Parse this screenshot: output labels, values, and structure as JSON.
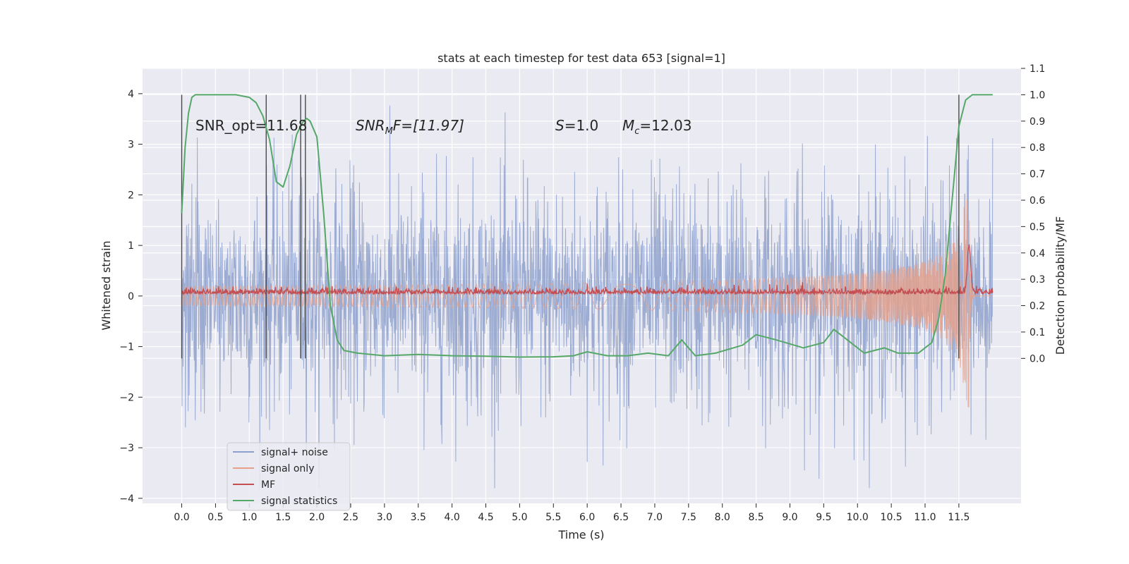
{
  "chart_data": {
    "type": "line",
    "title": "stats at each timestep for test data 653 [signal=1]",
    "xlabel": "Time (s)",
    "ylabel": "Whitened strain",
    "ylabel_right": "Detection probability/MF",
    "xlim": [
      -0.58,
      12.42
    ],
    "ylim": [
      -4.1,
      4.5
    ],
    "ylim_right": [
      -0.55,
      1.1
    ],
    "x_ticks": [
      "0.0",
      "0.5",
      "1.0",
      "1.5",
      "2.0",
      "2.5",
      "3.0",
      "3.5",
      "4.0",
      "4.5",
      "5.0",
      "5.5",
      "6.0",
      "6.5",
      "7.0",
      "7.5",
      "8.0",
      "8.5",
      "9.0",
      "9.5",
      "10.0",
      "10.5",
      "11.0",
      "11.5"
    ],
    "y_ticks": [
      "4",
      "3",
      "2",
      "1",
      "0",
      "−1",
      "−2",
      "−3",
      "−4"
    ],
    "y_ticks_right": [
      "1.1",
      "1.0",
      "0.9",
      "0.8",
      "0.7",
      "0.6",
      "0.5",
      "0.4",
      "0.3",
      "0.2",
      "0.1",
      "0.0"
    ],
    "grid": true,
    "legend": {
      "placement": "lower-left",
      "entries": [
        {
          "label": "signal+ noise",
          "color": "#8da0cb"
        },
        {
          "label": "signal only",
          "color": "#e6a08a"
        },
        {
          "label": "MF",
          "color": "#c44e52"
        },
        {
          "label": "signal statistics",
          "color": "#55a868"
        }
      ]
    },
    "annotations": {
      "snr_opt": "SNR_opt=11.68",
      "snr_mf_main": "SNR",
      "snr_mf_sub": "M",
      "snr_mf_rest": "F=[11.97]",
      "s_main": "S",
      "s_rest": "=1.0",
      "mc_main": "M",
      "mc_sub": "c",
      "mc_rest": "=12.03"
    },
    "series": [
      {
        "name": "signal+ noise",
        "axis": "left",
        "style": "dense-noise",
        "x_range": [
          0.0,
          12.0
        ],
        "approx_envelope": [
          -3.8,
          4.1
        ]
      },
      {
        "name": "signal only",
        "axis": "left",
        "style": "chirp",
        "x_range": [
          0.0,
          12.0
        ],
        "peak_time": 11.65,
        "peak_amplitude": 2.2
      },
      {
        "name": "MF",
        "axis": "left",
        "x_range": [
          0.0,
          12.0
        ],
        "baseline": 0.07,
        "peak_time": 11.65,
        "peak_value": 1.0
      },
      {
        "name": "signal statistics",
        "axis": "right",
        "x": [
          0.0,
          0.05,
          0.1,
          0.15,
          0.2,
          0.3,
          0.5,
          0.8,
          1.0,
          1.1,
          1.2,
          1.3,
          1.4,
          1.5,
          1.6,
          1.7,
          1.8,
          1.85,
          1.9,
          2.0,
          2.1,
          2.2,
          2.3,
          2.4,
          2.6,
          3.0,
          3.5,
          4.0,
          4.5,
          5.0,
          5.5,
          5.8,
          6.0,
          6.3,
          6.6,
          6.9,
          7.2,
          7.4,
          7.6,
          7.9,
          8.3,
          8.5,
          8.8,
          9.2,
          9.5,
          9.65,
          9.8,
          10.1,
          10.4,
          10.6,
          10.9,
          11.1,
          11.2,
          11.3,
          11.4,
          11.5,
          11.6,
          11.7,
          11.8,
          12.0
        ],
        "y": [
          0.55,
          0.8,
          0.93,
          0.99,
          1.0,
          1.0,
          1.0,
          1.0,
          0.99,
          0.97,
          0.92,
          0.83,
          0.67,
          0.65,
          0.73,
          0.85,
          0.9,
          0.91,
          0.9,
          0.84,
          0.55,
          0.2,
          0.07,
          0.03,
          0.02,
          0.01,
          0.015,
          0.01,
          0.008,
          0.005,
          0.006,
          0.01,
          0.025,
          0.01,
          0.01,
          0.02,
          0.01,
          0.07,
          0.01,
          0.02,
          0.05,
          0.09,
          0.07,
          0.04,
          0.06,
          0.11,
          0.08,
          0.02,
          0.04,
          0.02,
          0.02,
          0.06,
          0.15,
          0.32,
          0.6,
          0.88,
          0.98,
          1.0,
          1.0,
          1.0
        ]
      }
    ],
    "vertical_markers": [
      0.0,
      1.25,
      1.76,
      1.83,
      11.5
    ],
    "colors": {
      "background": "#eaeaf2",
      "grid": "#ffffff",
      "noise": "#8da0cb",
      "signal": "#e6a08a",
      "mf": "#c44e52",
      "stat": "#55a868",
      "marker": "#4a4a4a"
    }
  }
}
